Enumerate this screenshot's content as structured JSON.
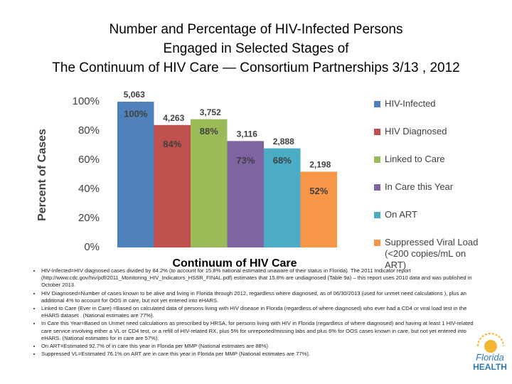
{
  "chart_data": {
    "type": "bar",
    "title_lines": [
      "Number and Percentage of HIV-Infected Persons",
      "Engaged in Selected Stages of",
      "The Continuum of HIV Care — Consortium Partnerships 3/13 , 2012"
    ],
    "x_label": "Continuum of HIV Care",
    "y_label": "Percent of Cases",
    "categories": [
      "HIV-Infected",
      "HIV Diagnosed",
      "Linked to Care",
      "In Care this Year",
      "On ART",
      "Suppressed Viral Load (<200 copies/mL on ART)"
    ],
    "colors": [
      "#4f81bd",
      "#c0504d",
      "#9bbb59",
      "#8064a2",
      "#4bacc6",
      "#f79646"
    ],
    "values": [
      100,
      84,
      88,
      73,
      68,
      52
    ],
    "value_labels": [
      "100%",
      "84%",
      "88%",
      "73%",
      "68%",
      "52%"
    ],
    "counts": [
      5063,
      4263,
      3752,
      3116,
      2888,
      2198
    ],
    "count_labels": [
      "5,063",
      "4,263",
      "3,752",
      "3,116",
      "2,888",
      "2,198"
    ],
    "ylim": [
      0,
      100
    ],
    "yticks": [
      {
        "value": 0,
        "label": "0%"
      },
      {
        "value": 20,
        "label": "20%"
      },
      {
        "value": 40,
        "label": "40%"
      },
      {
        "value": 60,
        "label": "60%"
      },
      {
        "value": 80,
        "label": "80%"
      },
      {
        "value": 100,
        "label": "100%"
      }
    ],
    "grid": false,
    "legend": "right"
  },
  "notes": [
    "HIV-Infected=HIV diagnosed cases divided by 84.2% (to account for 15.8% national estimated unaware of their status in Florida). The 2011 Indicator report (http://www.cdc.gov/hiv/pdf/2011_Monitoring_HIV_Indicators_HSSR_FINAL.pdf) estimates that 15.8% are undiagnosed (Table 9a) – this report uses 2010 data and was published in October 2013.",
    "HIV Diagnosed=Number of cases known to be alive and living in Florida through 2012, regardless where diagnosed, as of 06/30/2013 (used for unmet need calculations ), plus an additional 4% to account for OOS in care, but not yet entered into eHARS.",
    "Linked to Care (Ever in Care) =Based on calculated data of persons living with HIV disease in Florida (regardless of where diagnosed) who ever had a CD4 or viral load test in the eHARS dataset . (National estimates are 77%).",
    "In Care this Year=Based on Unmet need calculations as prescribed by HRSA, for persons living with HIV in Florida (regardless of where diagnosed) and having at least 1 HIV-related care service involving either a VL or CD4 test, or a refill of HIV-related RX, plus 5% for unreported/missing labs and plus 6% for OOS cases known in care, but not yet entered into eHARS. (National estimates for in care are 57%).",
    "On ART=Estimated 92.7% of in care this year in Florida per MMP (National estimates are 88%)",
    "Suppressed VL=Estimated 76.1% on ART are in care this year in Florida per MMP (National estimates are 77%)."
  ],
  "logo": {
    "line1": "Florida",
    "line2": "HEALTH"
  }
}
